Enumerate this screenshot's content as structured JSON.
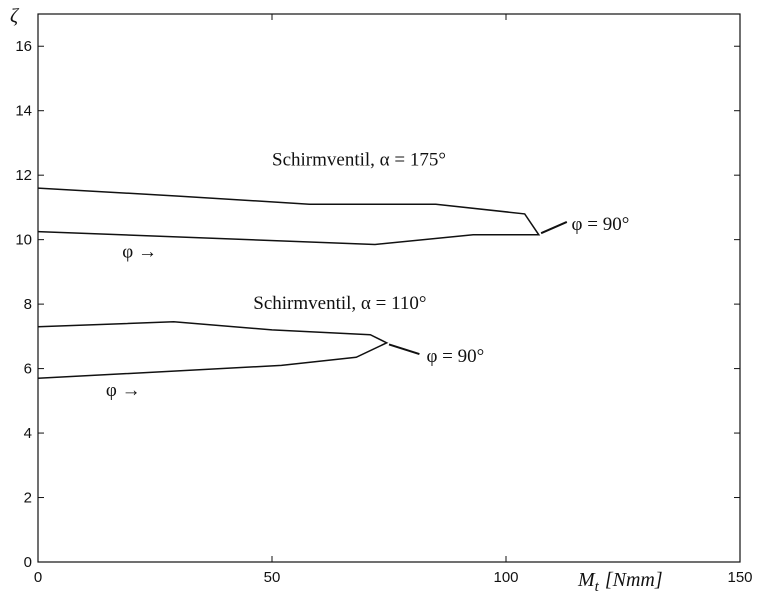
{
  "chart_data": {
    "type": "line",
    "title": "",
    "xlabel_main": "M",
    "xlabel_sub": "t",
    "xlabel_unit": "[Nmm]",
    "ylabel": "ζ",
    "xlim": [
      0,
      150
    ],
    "ylim": [
      0,
      17
    ],
    "x_ticks": [
      0,
      50,
      100,
      150
    ],
    "y_ticks": [
      0,
      2,
      4,
      6,
      8,
      10,
      12,
      14,
      16
    ],
    "grid": false,
    "series": [
      {
        "x": [
          0,
          30,
          58,
          85,
          104,
          107,
          93,
          72,
          0
        ],
        "y": [
          11.6,
          11.35,
          11.1,
          11.1,
          10.8,
          10.15,
          10.15,
          9.85,
          10.25
        ]
      },
      {
        "x": [
          0,
          29,
          50,
          71,
          74.5,
          68,
          52,
          0
        ],
        "y": [
          7.3,
          7.45,
          7.2,
          7.05,
          6.8,
          6.35,
          6.1,
          5.7
        ]
      }
    ],
    "annotations": [
      {
        "text": "Schirmventil, α = 175°",
        "x": 50,
        "y": 12.3
      },
      {
        "text": "φ = 90°",
        "x": 114,
        "y": 10.3
      },
      {
        "text": "φ →",
        "x": 18,
        "y": 9.45
      },
      {
        "text": "Schirmventil, α = 110°",
        "x": 46,
        "y": 7.85
      },
      {
        "text": "φ = 90°",
        "x": 83,
        "y": 6.2
      },
      {
        "text": "φ →",
        "x": 14.5,
        "y": 5.15
      }
    ],
    "leaders": [
      {
        "from": [
          107.5,
          10.2
        ],
        "to": [
          113,
          10.55
        ]
      },
      {
        "from": [
          75,
          6.75
        ],
        "to": [
          81.5,
          6.45
        ]
      }
    ]
  }
}
